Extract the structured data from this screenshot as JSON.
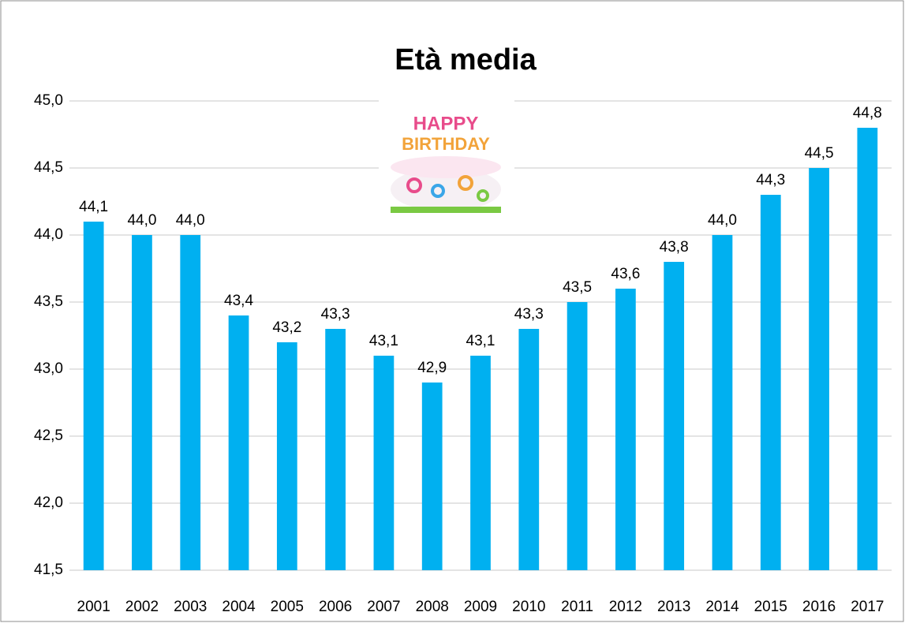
{
  "chart_data": {
    "type": "bar",
    "title": "Età media",
    "categories": [
      "2001",
      "2002",
      "2003",
      "2004",
      "2005",
      "2006",
      "2007",
      "2008",
      "2009",
      "2010",
      "2011",
      "2012",
      "2013",
      "2014",
      "2015",
      "2016",
      "2017"
    ],
    "values": [
      44.1,
      44.0,
      44.0,
      43.4,
      43.2,
      43.3,
      43.1,
      42.9,
      43.1,
      43.3,
      43.5,
      43.6,
      43.8,
      44.0,
      44.3,
      44.5,
      44.8
    ],
    "value_labels": [
      "44,1",
      "44,0",
      "44,0",
      "43,4",
      "43,2",
      "43,3",
      "43,1",
      "42,9",
      "43,1",
      "43,3",
      "43,5",
      "43,6",
      "43,8",
      "44,0",
      "44,3",
      "44,5",
      "44,8"
    ],
    "color": "#00b0f0",
    "ylim": [
      41.5,
      45.0
    ],
    "yticks": [
      {
        "value": 41.5,
        "label": "41,5"
      },
      {
        "value": 42.0,
        "label": "42,0"
      },
      {
        "value": 42.5,
        "label": "42,5"
      },
      {
        "value": 43.0,
        "label": "43,0"
      },
      {
        "value": 43.5,
        "label": "43,5"
      },
      {
        "value": 44.0,
        "label": "44,0"
      },
      {
        "value": 44.5,
        "label": "44,5"
      },
      {
        "value": 45.0,
        "label": "45,0"
      }
    ],
    "grid": true
  }
}
